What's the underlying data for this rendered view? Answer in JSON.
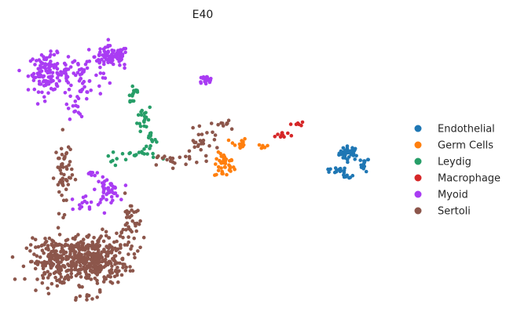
{
  "chart_data": {
    "type": "scatter",
    "title": "E40",
    "xlabel": "",
    "ylabel": "",
    "axes_visible": false,
    "grid": false,
    "xlim": [
      -10,
      16
    ],
    "ylim": [
      -11,
      13
    ],
    "legend_placement": "right",
    "point_counts_note": "",
    "series": [
      {
        "name": "Endothelial",
        "color": "#1f77b4",
        "clusters": [
          {
            "cx": 13.2,
            "cy": 2.4,
            "sx": 0.35,
            "sy": 0.3,
            "n": 40
          },
          {
            "cx": 14.3,
            "cy": 1.4,
            "sx": 0.15,
            "sy": 0.3,
            "n": 14
          },
          {
            "cx": 12.2,
            "cy": 0.9,
            "sx": 0.45,
            "sy": 0.12,
            "n": 14
          },
          {
            "cx": 13.0,
            "cy": 0.4,
            "sx": 0.25,
            "sy": 0.12,
            "n": 8
          }
        ]
      },
      {
        "name": "Germ Cells",
        "color": "#ff7f0e",
        "clusters": [
          {
            "cx": 4.4,
            "cy": 1.3,
            "sx": 0.35,
            "sy": 0.55,
            "n": 40
          },
          {
            "cx": 5.4,
            "cy": 3.2,
            "sx": 0.3,
            "sy": 0.3,
            "n": 16
          },
          {
            "cx": 7.0,
            "cy": 3.0,
            "sx": 0.35,
            "sy": 0.1,
            "n": 6
          }
        ]
      },
      {
        "name": "Leydig",
        "color": "#279e68",
        "clusters": [
          {
            "cx": -2.0,
            "cy": 7.6,
            "sx": 0.25,
            "sy": 0.6,
            "n": 14
          },
          {
            "cx": -1.2,
            "cy": 5.5,
            "sx": 0.25,
            "sy": 0.6,
            "n": 18
          },
          {
            "cx": -0.8,
            "cy": 3.6,
            "sx": 0.2,
            "sy": 0.6,
            "n": 16
          },
          {
            "cx": -1.8,
            "cy": 2.3,
            "sx": 0.7,
            "sy": 0.2,
            "n": 14
          },
          {
            "cx": -3.4,
            "cy": 1.8,
            "sx": 0.2,
            "sy": 0.3,
            "n": 6
          }
        ]
      },
      {
        "name": "Macrophage",
        "color": "#d62728",
        "clusters": [
          {
            "cx": 8.5,
            "cy": 4.0,
            "sx": 0.35,
            "sy": 0.2,
            "n": 10
          },
          {
            "cx": 9.5,
            "cy": 5.0,
            "sx": 0.2,
            "sy": 0.12,
            "n": 6
          }
        ]
      },
      {
        "name": "Myoid",
        "color": "#a93cf3",
        "clusters": [
          {
            "cx": -8.0,
            "cy": 9.4,
            "sx": 0.7,
            "sy": 0.8,
            "n": 110
          },
          {
            "cx": -3.5,
            "cy": 10.8,
            "sx": 0.6,
            "sy": 0.45,
            "n": 90
          },
          {
            "cx": -5.5,
            "cy": 9.2,
            "sx": 1.2,
            "sy": 0.9,
            "n": 60
          },
          {
            "cx": -5.8,
            "cy": 6.8,
            "sx": 0.4,
            "sy": 0.7,
            "n": 20
          },
          {
            "cx": 3.1,
            "cy": 8.8,
            "sx": 0.25,
            "sy": 0.15,
            "n": 20
          },
          {
            "cx": -3.8,
            "cy": -0.8,
            "sx": 0.4,
            "sy": 0.5,
            "n": 40
          },
          {
            "cx": -5.0,
            "cy": 0.6,
            "sx": 0.2,
            "sy": 0.2,
            "n": 8
          },
          {
            "cx": -5.5,
            "cy": -2.0,
            "sx": 0.8,
            "sy": 0.4,
            "n": 16
          }
        ]
      },
      {
        "name": "Sertoli",
        "color": "#8c564b",
        "clusters": [
          {
            "cx": -5.0,
            "cy": -6.8,
            "sx": 1.3,
            "sy": 1.1,
            "n": 380
          },
          {
            "cx": -7.5,
            "cy": -7.0,
            "sx": 1.0,
            "sy": 0.9,
            "n": 160
          },
          {
            "cx": -6.9,
            "cy": 0.6,
            "sx": 0.3,
            "sy": 1.6,
            "n": 55
          },
          {
            "cx": -2.2,
            "cy": -4.0,
            "sx": 0.35,
            "sy": 1.3,
            "n": 40
          },
          {
            "cx": 0.8,
            "cy": 1.8,
            "sx": 1.0,
            "sy": 0.3,
            "n": 20
          },
          {
            "cx": 2.9,
            "cy": 3.4,
            "sx": 0.6,
            "sy": 0.5,
            "n": 24
          },
          {
            "cx": 4.5,
            "cy": 5.0,
            "sx": 0.4,
            "sy": 0.2,
            "n": 10
          },
          {
            "cx": -5.0,
            "cy": -10.2,
            "sx": 0.4,
            "sy": 0.3,
            "n": 10
          }
        ]
      }
    ]
  }
}
